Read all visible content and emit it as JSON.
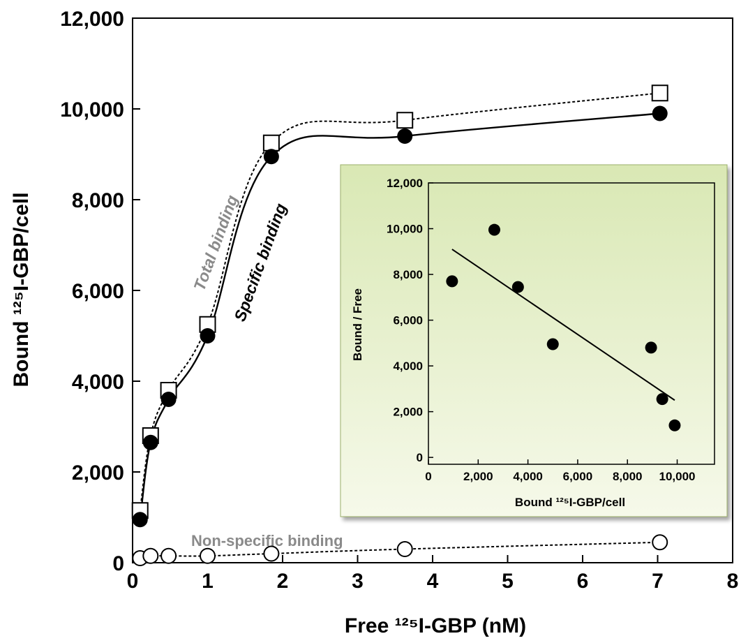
{
  "chart_data": [
    {
      "type": "line",
      "xlabel": "Free ¹²⁵I-GBP (nM)",
      "ylabel": "Bound ¹²⁵I-GBP/cell",
      "xlim": [
        0,
        8
      ],
      "ylim": [
        0,
        12000
      ],
      "xticks": [
        "0",
        "1",
        "2",
        "3",
        "4",
        "5",
        "6",
        "7",
        "8"
      ],
      "yticks": [
        "0",
        "2,000",
        "4,000",
        "6,000",
        "8,000",
        "10,000",
        "12,000"
      ],
      "series": [
        {
          "name": "Total binding",
          "marker": "open-square",
          "line": "dotted",
          "x": [
            0.1,
            0.24,
            0.48,
            1.0,
            1.85,
            3.63,
            7.03
          ],
          "y": [
            1150,
            2800,
            3800,
            5250,
            9250,
            9750,
            10350
          ]
        },
        {
          "name": "Specific binding",
          "marker": "filled-circle",
          "line": "solid",
          "x": [
            0.1,
            0.24,
            0.48,
            1.0,
            1.85,
            3.63,
            7.03
          ],
          "y": [
            950,
            2650,
            3600,
            5000,
            8950,
            9400,
            9900
          ]
        },
        {
          "name": "Non-specific binding",
          "marker": "open-circle",
          "line": "dotted",
          "x": [
            0.1,
            0.24,
            0.48,
            1.0,
            1.85,
            3.63,
            7.03
          ],
          "y": [
            100,
            150,
            150,
            150,
            200,
            300,
            450
          ]
        }
      ]
    },
    {
      "type": "scatter",
      "xlabel": "Bound ¹²⁵I-GBP/cell",
      "ylabel": "Bound / Free",
      "xlim": [
        0,
        11500
      ],
      "ylim": [
        -300,
        12000
      ],
      "xticks": [
        "0",
        "2,000",
        "4,000",
        "6,000",
        "8,000",
        "10,000"
      ],
      "yticks": [
        "0",
        "2,000",
        "4,000",
        "6,000",
        "8,000",
        "10,000",
        "12,000"
      ],
      "points": {
        "x": [
          950,
          2650,
          3600,
          5000,
          8950,
          9400,
          9900
        ],
        "y": [
          7700,
          9950,
          7450,
          4950,
          4800,
          2550,
          1400
        ]
      },
      "fit_line": {
        "x": [
          950,
          9900
        ],
        "y": [
          9100,
          2500
        ]
      },
      "background": "#e8f0cf"
    }
  ]
}
